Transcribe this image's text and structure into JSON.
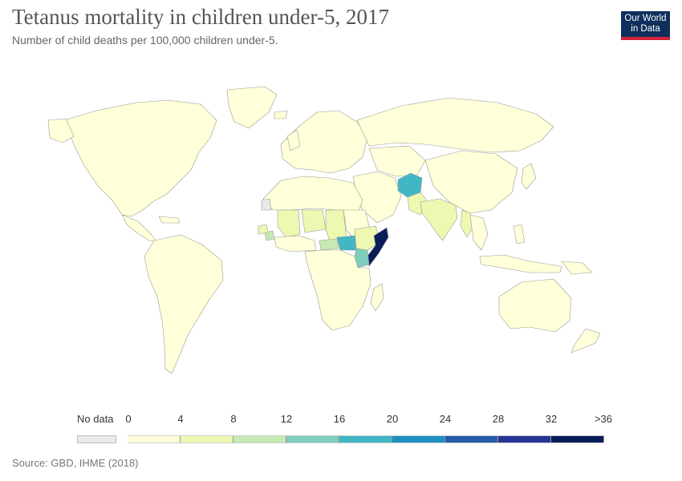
{
  "header": {
    "title": "Tetanus mortality in children under-5, 2017",
    "subtitle": "Number of child deaths per 100,000 children under-5."
  },
  "logo": {
    "line1": "Our World",
    "line2": "in Data",
    "bg": "#0f2f5c",
    "accent": "#d6223a"
  },
  "legend": {
    "no_data_label": "No data",
    "no_data_color": "#e9e9e9",
    "ticks": [
      "0",
      "4",
      "8",
      "12",
      "16",
      "20",
      "24",
      "28",
      "32",
      ">36"
    ],
    "colors": [
      "#ffffd9",
      "#edf8b1",
      "#c7e9b4",
      "#7fcdbb",
      "#41b6c4",
      "#1d91c0",
      "#225ea8",
      "#253494",
      "#081d58"
    ]
  },
  "chart_data": {
    "type": "choropleth",
    "title": "Tetanus mortality in children under-5, 2017",
    "subtitle": "Number of child deaths per 100,000 children under-5.",
    "year": 2017,
    "bins": [
      [
        0,
        4
      ],
      [
        4,
        8
      ],
      [
        8,
        12
      ],
      [
        12,
        16
      ],
      [
        16,
        20
      ],
      [
        20,
        24
      ],
      [
        24,
        28
      ],
      [
        28,
        32
      ],
      [
        32,
        36
      ]
    ],
    "regions": [
      {
        "name": "Somalia",
        "bin": 8
      },
      {
        "name": "Afghanistan",
        "bin": 4
      },
      {
        "name": "South Sudan",
        "bin": 4
      },
      {
        "name": "Kenya",
        "bin": 3
      },
      {
        "name": "Central African Republic",
        "bin": 2
      },
      {
        "name": "Ethiopia",
        "bin": 1
      },
      {
        "name": "Chad",
        "bin": 1
      },
      {
        "name": "Niger",
        "bin": 1
      },
      {
        "name": "Mali",
        "bin": 1
      },
      {
        "name": "Sierra Leone",
        "bin": 2
      },
      {
        "name": "Guinea",
        "bin": 1
      },
      {
        "name": "Pakistan",
        "bin": 1
      },
      {
        "name": "India",
        "bin": 1
      },
      {
        "name": "Myanmar",
        "bin": 1
      }
    ]
  },
  "source": "Source: GBD, IHME (2018)"
}
